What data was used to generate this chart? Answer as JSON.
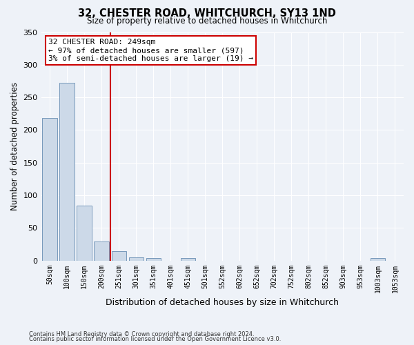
{
  "title": "32, CHESTER ROAD, WHITCHURCH, SY13 1ND",
  "subtitle": "Size of property relative to detached houses in Whitchurch",
  "xlabel": "Distribution of detached houses by size in Whitchurch",
  "ylabel": "Number of detached properties",
  "bar_color": "#ccd9e8",
  "bar_edge_color": "#7799bb",
  "background_color": "#eef2f8",
  "grid_color": "#ffffff",
  "bin_labels": [
    "50sqm",
    "100sqm",
    "150sqm",
    "200sqm",
    "251sqm",
    "301sqm",
    "351sqm",
    "401sqm",
    "451sqm",
    "501sqm",
    "552sqm",
    "602sqm",
    "652sqm",
    "702sqm",
    "752sqm",
    "802sqm",
    "852sqm",
    "903sqm",
    "953sqm",
    "1003sqm",
    "1053sqm"
  ],
  "bar_heights": [
    218,
    272,
    84,
    29,
    14,
    5,
    4,
    0,
    4,
    0,
    0,
    0,
    0,
    0,
    0,
    0,
    0,
    0,
    0,
    4,
    0
  ],
  "vline_x_index": 4,
  "vline_color": "#cc0000",
  "ylim": [
    0,
    350
  ],
  "yticks": [
    0,
    50,
    100,
    150,
    200,
    250,
    300,
    350
  ],
  "annotation_title": "32 CHESTER ROAD: 249sqm",
  "annotation_line2": "← 97% of detached houses are smaller (597)",
  "annotation_line3": "3% of semi-detached houses are larger (19) →",
  "annotation_box_color": "#ffffff",
  "annotation_box_edge": "#cc0000",
  "footnote1": "Contains HM Land Registry data © Crown copyright and database right 2024.",
  "footnote2": "Contains public sector information licensed under the Open Government Licence v3.0."
}
